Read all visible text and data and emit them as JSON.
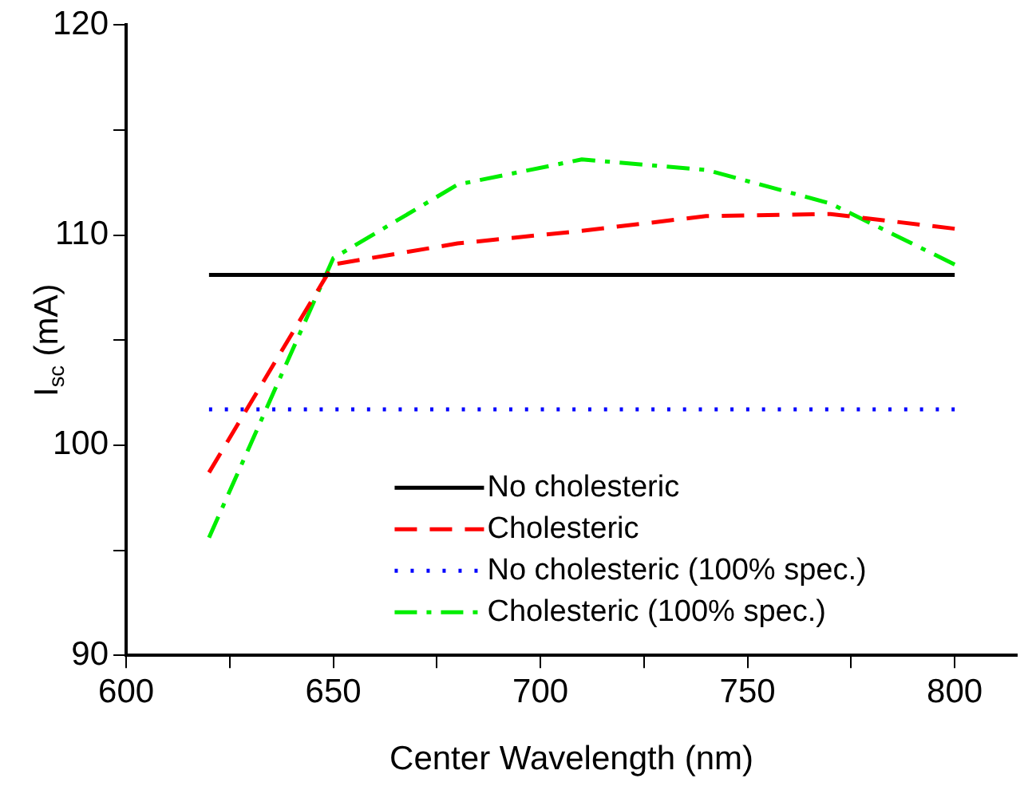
{
  "chart_data": {
    "type": "line",
    "xlabel": "Center Wavelength (nm)",
    "ylabel": "I$_{sc}$ (mA)",
    "xlim": [
      600,
      815
    ],
    "xticks": [
      600,
      {
        "value": 625,
        "label": null
      },
      650,
      {
        "value": 675,
        "label": null
      },
      700,
      {
        "value": 725,
        "label": null
      },
      750,
      {
        "value": 775,
        "label": null
      },
      800
    ],
    "ylim": [
      90,
      120
    ],
    "yticks": [
      90,
      {
        "value": 95,
        "label": null
      },
      100,
      {
        "value": 105,
        "label": null
      },
      110,
      {
        "value": 115,
        "label": null
      },
      120
    ],
    "grid": false,
    "legend": "bottom",
    "marker": "none",
    "series": [
      {
        "name": "No cholesteric",
        "color": "#000000",
        "line_style": "solid",
        "x": [
          620,
          800
        ],
        "values": [
          108.1,
          108.1
        ]
      },
      {
        "name": "Cholesteric",
        "color": "#ff0000",
        "line_style": "dashed",
        "x": [
          620,
          650,
          680,
          710,
          740,
          770,
          800
        ],
        "values": [
          98.7,
          108.6,
          109.6,
          110.2,
          110.9,
          111.0,
          110.3
        ]
      },
      {
        "name": "No cholesteric (100% spec.)",
        "color": "#0000ff",
        "line_style": "dotted",
        "x": [
          620,
          800
        ],
        "values": [
          101.7,
          101.7
        ]
      },
      {
        "name": "Cholesteric (100% spec.)",
        "color": "#00ee00",
        "line_style": "dashdot",
        "x": [
          620,
          650,
          680,
          710,
          740,
          770,
          800
        ],
        "values": [
          95.6,
          108.9,
          112.4,
          113.6,
          113.1,
          111.5,
          108.6
        ]
      }
    ]
  }
}
